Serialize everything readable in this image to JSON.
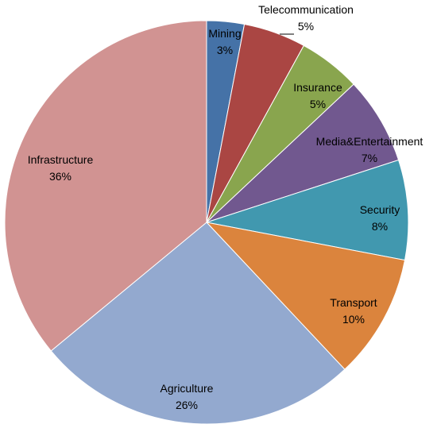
{
  "chart_data": {
    "type": "pie",
    "title": "",
    "slices": [
      {
        "label": "Mining",
        "value": 3,
        "value_label": "3%",
        "color": "#4572A7"
      },
      {
        "label": "Telecommunication",
        "value": 5,
        "value_label": "5%",
        "color": "#AA4643"
      },
      {
        "label": "Insurance",
        "value": 5,
        "value_label": "5%",
        "color": "#89A54E"
      },
      {
        "label": "Media&Entertainment",
        "value": 7,
        "value_label": "7%",
        "color": "#71588F"
      },
      {
        "label": "Security",
        "value": 8,
        "value_label": "8%",
        "color": "#4198AF"
      },
      {
        "label": "Transport",
        "value": 10,
        "value_label": "10%",
        "color": "#DB843D"
      },
      {
        "label": "Agriculture",
        "value": 26,
        "value_label": "26%",
        "color": "#93A9CF"
      },
      {
        "label": "Infrastructure",
        "value": 36,
        "value_label": "36%",
        "color": "#D19392"
      }
    ],
    "start_angle": "12 o'clock",
    "direction": "clockwise",
    "legend": "none"
  }
}
